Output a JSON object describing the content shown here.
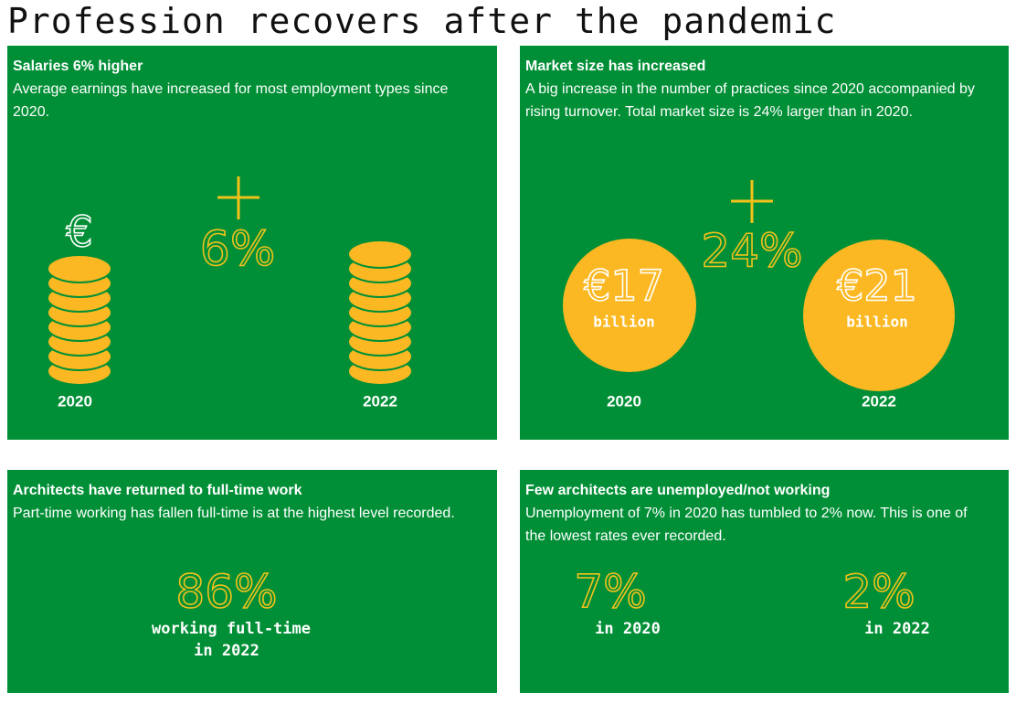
{
  "title": "Profession recovers after the pandemic",
  "panels": [
    {
      "heading": "Salaries 6% higher",
      "text": "Average earnings have increased for most employment types since 2020.",
      "symbol": "€",
      "change": "6%",
      "labels": [
        "2020",
        "2022"
      ]
    },
    {
      "heading": "Market size has increased",
      "text": "A big increase in the number of practices since 2020 accompanied by rising turnover. Total market size is 24% larger than in 2020.",
      "change": "24%",
      "circles": [
        {
          "amount": "€17",
          "unit": "billion",
          "label": "2020"
        },
        {
          "amount": "€21",
          "unit": "billion",
          "label": "2022"
        }
      ]
    },
    {
      "heading": "Architects have returned to full-time work",
      "text": "Part-time working has fallen full-time is at the highest level recorded.",
      "figure": "86%",
      "caption": [
        "working full-time",
        "in 2022"
      ]
    },
    {
      "heading": "Few architects are unemployed/not working",
      "text": "Unemployment of 7% in 2020 has tumbled to 2% now. This is one of the lowest rates ever recorded.",
      "figures": [
        {
          "value": "7%",
          "caption": "in 2020"
        },
        {
          "value": "2%",
          "caption": "in 2022"
        }
      ]
    }
  ]
}
